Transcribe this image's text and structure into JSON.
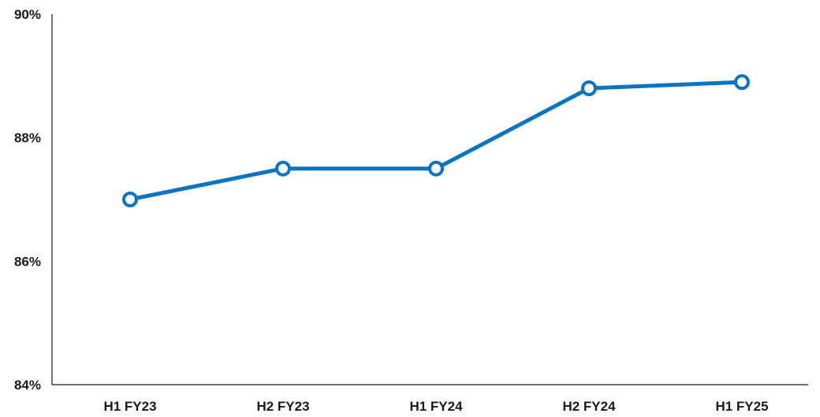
{
  "chart_data": {
    "type": "line",
    "title": "",
    "xlabel": "",
    "ylabel": "",
    "categories": [
      "H1 FY23",
      "H2 FY23",
      "H1 FY24",
      "H2 FY24",
      "H1 FY25"
    ],
    "series": [
      {
        "values": [
          87.0,
          87.5,
          87.5,
          88.8,
          88.9
        ],
        "color": "#0a74c4"
      }
    ],
    "ylim": [
      84,
      90
    ],
    "yticks": [
      84,
      86,
      88,
      90
    ],
    "ytick_labels": [
      "84%",
      "86%",
      "88%",
      "90%"
    ],
    "grid": false,
    "legend": "none",
    "marker": "open-circle"
  }
}
